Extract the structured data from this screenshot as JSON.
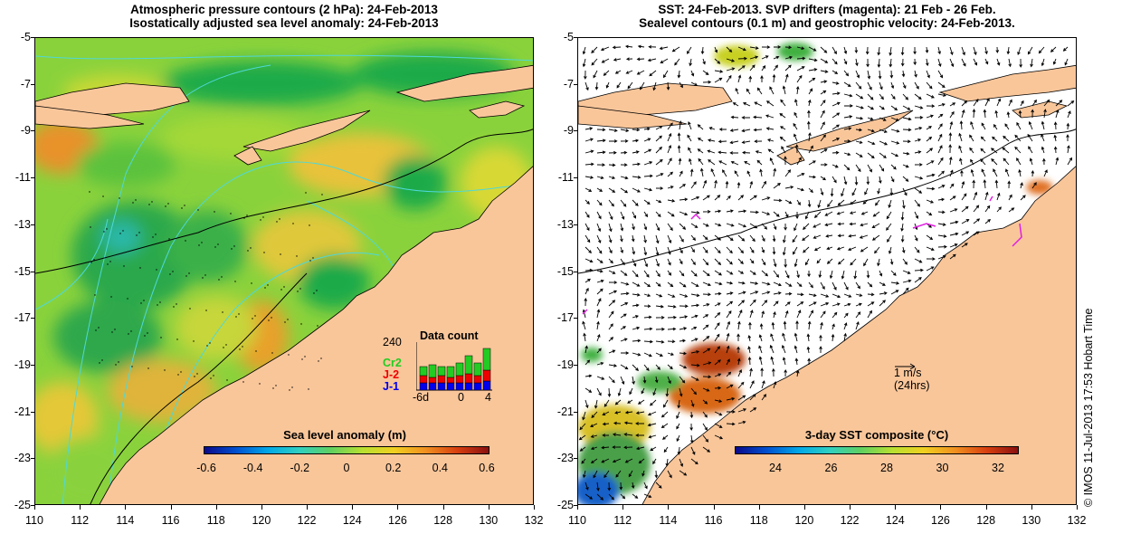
{
  "left": {
    "title1": "Atmospheric pressure contours (2 hPa): 24-Feb-2013",
    "title2": "Isostatically adjusted sea level anomaly: 24-Feb-2013",
    "colorbar_title": "Sea level anomaly (m)",
    "colorbar_ticks": [
      "-0.6",
      "-0.4",
      "-0.2",
      "0",
      "0.2",
      "0.4",
      "0.6"
    ],
    "inset": {
      "title": "Data count",
      "ymax_label": "240",
      "legend": [
        "Cr2",
        "J-2",
        "J-1"
      ],
      "legend_colors": [
        "#22cc22",
        "#ee0000",
        "#0000ee"
      ],
      "xticks": [
        "-6d",
        "0",
        "4"
      ]
    }
  },
  "right": {
    "title1": "SST: 24-Feb-2013. SVP drifters (magenta): 21 Feb - 26 Feb.",
    "title2": "Sealevel contours (0.1 m) and geostrophic velocity: 24-Feb-2013.",
    "colorbar_title": "3-day SST composite (°C)",
    "colorbar_ticks": [
      "24",
      "26",
      "28",
      "30",
      "32"
    ],
    "scale_label": "1 m/s",
    "scale_sub": "(24hrs)"
  },
  "xticks": [
    "110",
    "112",
    "114",
    "116",
    "118",
    "120",
    "122",
    "124",
    "126",
    "128",
    "130",
    "132"
  ],
  "yticks": [
    "-5",
    "-7",
    "-9",
    "-11",
    "-13",
    "-15",
    "-17",
    "-19",
    "-21",
    "-23",
    "-25"
  ],
  "credit": "© IMOS 11-Jul-2013 17:53 Hobart Time",
  "colors": {
    "land": "#f9c69a",
    "anomaly_base": "#8ad23c",
    "contour": "#4fd8d8"
  }
}
